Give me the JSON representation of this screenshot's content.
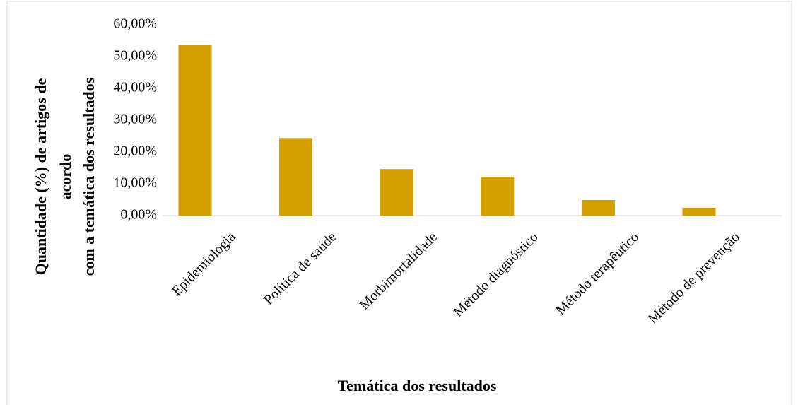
{
  "chart_data": {
    "type": "bar",
    "xlabel": "Temática dos resultados",
    "ylabel": [
      "Quantidade (%) de artigos de",
      "acordo",
      "com a temática dos resultados"
    ],
    "categories": [
      "Epidemiologia",
      "Política de saúde",
      "Morbimortalidade",
      "Método diagnóstico",
      "Método terapêutico",
      "Método de prevenção"
    ],
    "values": [
      53.66,
      24.39,
      14.63,
      12.2,
      4.88,
      2.44
    ],
    "color": "#d4a000",
    "ylim": [
      0,
      60
    ],
    "yticks": [
      {
        "value": 0,
        "label": "0,00%"
      },
      {
        "value": 10,
        "label": "10,00%"
      },
      {
        "value": 20,
        "label": "20,00%"
      },
      {
        "value": 30,
        "label": "30,00%"
      },
      {
        "value": 40,
        "label": "40,00%"
      },
      {
        "value": 50,
        "label": "50,00%"
      },
      {
        "value": 60,
        "label": "60,00%"
      }
    ],
    "grid": false
  }
}
